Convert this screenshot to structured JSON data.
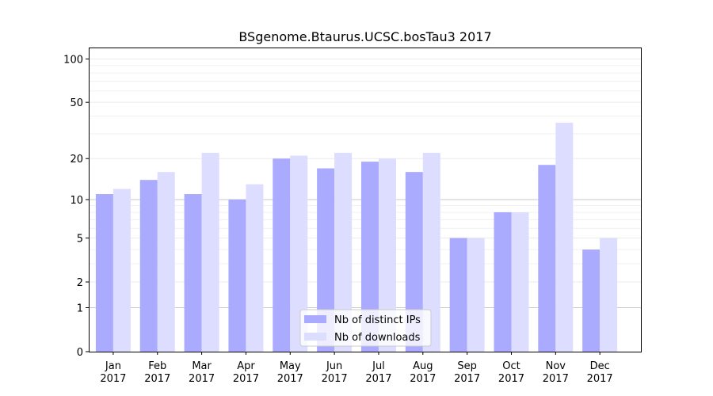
{
  "chart_data": {
    "type": "bar",
    "title": "BSgenome.Btaurus.UCSC.bosTau3 2017",
    "xlabel": "",
    "ylabel": "",
    "y_scale": "log(1+y)",
    "ylim": [
      0,
      120
    ],
    "yticks": [
      0,
      1,
      2,
      5,
      10,
      20,
      50,
      100
    ],
    "categories": [
      [
        "Jan",
        "2017"
      ],
      [
        "Feb",
        "2017"
      ],
      [
        "Mar",
        "2017"
      ],
      [
        "Apr",
        "2017"
      ],
      [
        "May",
        "2017"
      ],
      [
        "Jun",
        "2017"
      ],
      [
        "Jul",
        "2017"
      ],
      [
        "Aug",
        "2017"
      ],
      [
        "Sep",
        "2017"
      ],
      [
        "Oct",
        "2017"
      ],
      [
        "Nov",
        "2017"
      ],
      [
        "Dec",
        "2017"
      ]
    ],
    "series": [
      {
        "name": "Nb of distinct IPs",
        "color": "#aaaaff",
        "values": [
          11,
          14,
          11,
          10,
          20,
          17,
          19,
          16,
          5,
          8,
          18,
          4
        ]
      },
      {
        "name": "Nb of downloads",
        "color": "#ddddff",
        "values": [
          12,
          16,
          22,
          13,
          21,
          22,
          20,
          22,
          5,
          8,
          36,
          5
        ]
      }
    ],
    "legend": {
      "position": "bottom-center"
    },
    "reference_lines": [
      1,
      10
    ],
    "grid": "minor horizontal"
  }
}
